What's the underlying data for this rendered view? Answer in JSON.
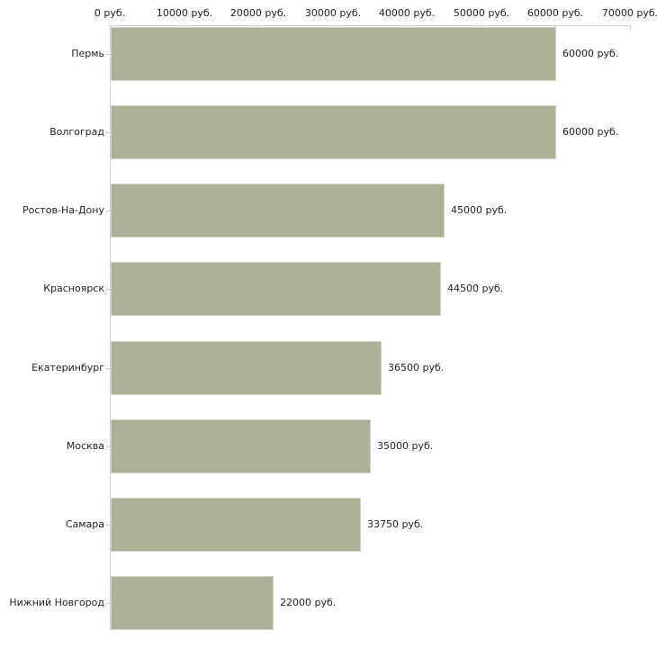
{
  "chart_data": {
    "type": "bar",
    "orientation": "horizontal",
    "title": "",
    "xlabel": "",
    "ylabel": "",
    "categories": [
      "Пермь",
      "Волгоград",
      "Ростов-На-Дону",
      "Красноярск",
      "Екатеринбург",
      "Москва",
      "Самара",
      "Нижний Новгород"
    ],
    "values": [
      60000,
      60000,
      45000,
      44500,
      36500,
      35000,
      33750,
      22000
    ],
    "value_labels": [
      "60000 руб.",
      "60000 руб.",
      "45000 руб.",
      "44500 руб.",
      "36500 руб.",
      "35000 руб.",
      "33750 руб.",
      "22000 руб."
    ],
    "x_ticks": [
      0,
      10000,
      20000,
      30000,
      40000,
      50000,
      60000,
      70000
    ],
    "x_tick_labels": [
      "0 руб.",
      "10000 руб.",
      "20000 руб.",
      "30000 руб.",
      "40000 руб.",
      "50000 руб.",
      "60000 руб.",
      "70000 руб."
    ],
    "xlim": [
      0,
      70000
    ],
    "axis_position": "top",
    "grid": false,
    "legend": false,
    "colors": {
      "bar_fill": "#abb197",
      "bar_border": "#d2d5c6",
      "axis_line": "#d5d5d5",
      "tick_mark": "#d2cbb0",
      "text": "#222222",
      "background": "#ffffff"
    }
  }
}
